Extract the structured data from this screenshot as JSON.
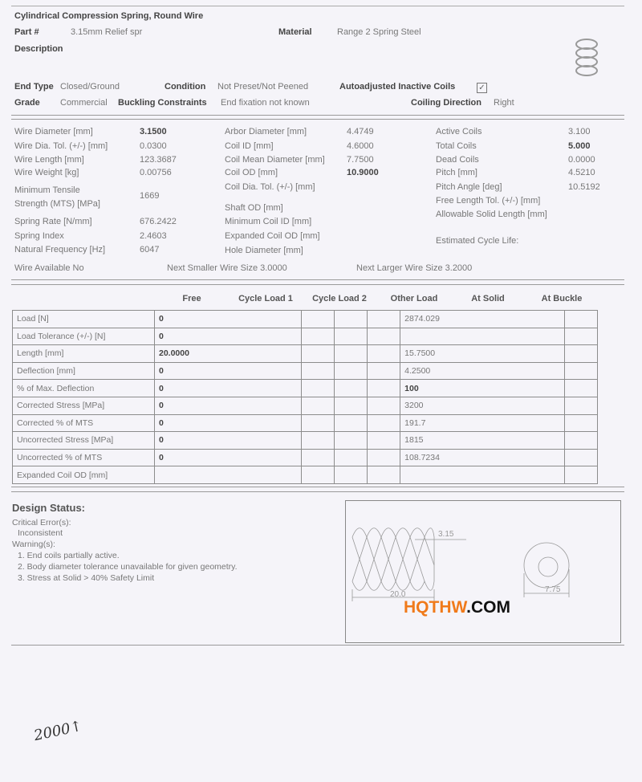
{
  "header": {
    "title": "Cylindrical Compression Spring, Round Wire",
    "part_label": "Part #",
    "part_value": "3.15mm Relief spr",
    "material_label": "Material",
    "material_value": "Range 2 Spring Steel",
    "description_label": "Description",
    "end_type_label": "End Type",
    "end_type_value": "Closed/Ground",
    "condition_label": "Condition",
    "condition_value": "Not Preset/Not Peened",
    "autoadjust_label": "Autoadjusted Inactive Coils",
    "autoadjust_checked": true,
    "check_glyph": "✓",
    "grade_label": "Grade",
    "grade_value": "Commercial",
    "buckling_label": "Buckling Constraints",
    "buckling_value": "End fixation not known",
    "coiling_label": "Coiling Direction",
    "coiling_value": "Right"
  },
  "props": {
    "col1": [
      {
        "label": "Wire Diameter [mm]",
        "value": "3.1500"
      },
      {
        "label": "Wire Dia. Tol. (+/-) [mm]",
        "value": "0.0300"
      },
      {
        "label": "Wire Length [mm]",
        "value": "123.3687"
      },
      {
        "label": "Wire Weight [kg]",
        "value": "0.00756"
      },
      {
        "label": "Minimum Tensile",
        "label2": "Strength (MTS) [MPa]",
        "value": "1669"
      },
      {
        "label": "Spring Rate [N/mm]",
        "value": "676.2422"
      },
      {
        "label": "Spring Index",
        "value": "2.4603"
      },
      {
        "label": "Natural Frequency [Hz]",
        "value": "6047"
      }
    ],
    "col2": [
      {
        "label": "Arbor Diameter [mm]",
        "value": "4.4749"
      },
      {
        "label": "Coil ID [mm]",
        "value": "4.6000"
      },
      {
        "label": "Coil Mean Diameter [mm]",
        "value": "7.7500"
      },
      {
        "label": "Coil OD [mm]",
        "value": "10.9000"
      },
      {
        "label": "Coil Dia. Tol. (+/-) [mm]",
        "value": ""
      },
      {
        "label": "Shaft OD [mm]",
        "value": ""
      },
      {
        "label": "Minimum Coil ID [mm]",
        "value": ""
      },
      {
        "label": "Expanded Coil OD [mm]",
        "value": ""
      },
      {
        "label": "Hole Diameter [mm]",
        "value": ""
      }
    ],
    "col3": [
      {
        "label": "Active Coils",
        "value": "3.100"
      },
      {
        "label": "Total Coils",
        "value": "5.000"
      },
      {
        "label": "Dead Coils",
        "value": "0.0000"
      },
      {
        "label": "Pitch [mm]",
        "value": "4.5210"
      },
      {
        "label": "Pitch Angle [deg]",
        "value": "10.5192"
      },
      {
        "label": "Free Length Tol. (+/-) [mm]",
        "value": ""
      },
      {
        "label": "Allowable Solid Length [mm]",
        "value": ""
      },
      {
        "label": "Estimated Cycle Life:",
        "value": ""
      }
    ],
    "wire_available": "Wire Available  No",
    "next_smaller": "Next Smaller Wire Size  3.0000",
    "next_larger": "Next Larger Wire Size  3.2000"
  },
  "table": {
    "columns": [
      "Free",
      "Cycle Load 1",
      "Cycle Load 2",
      "Other Load",
      "At Solid",
      "At Buckle"
    ],
    "rows": [
      {
        "label": "Load [N]",
        "cells": [
          "0",
          "",
          "",
          "",
          "2874.029",
          ""
        ]
      },
      {
        "label": "Load Tolerance  (+/-) [N]",
        "cells": [
          "0",
          "",
          "",
          "",
          "",
          ""
        ]
      },
      {
        "label": "Length [mm]",
        "cells": [
          "20.0000",
          "",
          "",
          "",
          "15.7500",
          ""
        ]
      },
      {
        "label": "Deflection [mm]",
        "cells": [
          "0",
          "",
          "",
          "",
          "4.2500",
          ""
        ]
      },
      {
        "label": "% of Max. Deflection",
        "cells": [
          "0",
          "",
          "",
          "",
          "100",
          ""
        ]
      },
      {
        "label": "Corrected Stress [MPa]",
        "cells": [
          "0",
          "",
          "",
          "",
          "3200",
          ""
        ]
      },
      {
        "label": "Corrected % of MTS",
        "cells": [
          "0",
          "",
          "",
          "",
          "191.7",
          ""
        ]
      },
      {
        "label": "Uncorrected Stress [MPa]",
        "cells": [
          "0",
          "",
          "",
          "",
          "1815",
          ""
        ]
      },
      {
        "label": "Uncorrected % of MTS",
        "cells": [
          "0",
          "",
          "",
          "",
          "108.7234",
          ""
        ]
      },
      {
        "label": "Expanded Coil OD [mm]",
        "cells": [
          "",
          "",
          "",
          "",
          "",
          ""
        ]
      }
    ]
  },
  "status": {
    "title": "Design Status:",
    "critical_label": "Critical Error(s):",
    "critical_items": [
      "Inconsistent"
    ],
    "warning_label": "Warning(s):",
    "warnings": [
      "1. End coils partially active.",
      "2. Body diameter tolerance unavailable for given geometry.",
      "3. Stress at Solid > 40% Safety Limit"
    ]
  },
  "drawing": {
    "wire_dim": "3.15",
    "length_dim": "20.0",
    "diameter_dim": "7.75"
  },
  "watermark": {
    "part1": "HQTHW",
    "part2": ".COM",
    "color1": "#f07a1a",
    "color2": "#111111"
  },
  "handwriting": "2000↑"
}
